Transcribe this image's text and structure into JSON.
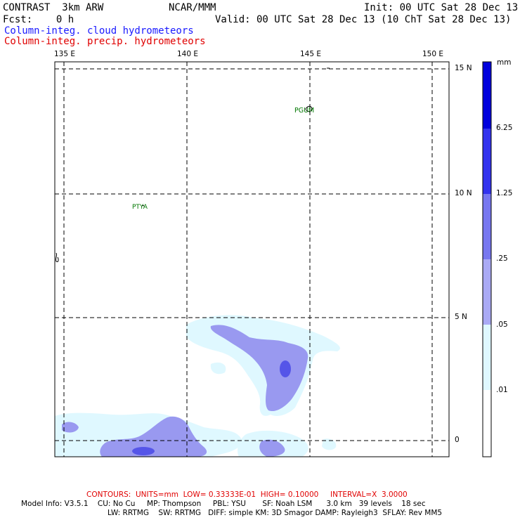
{
  "header": {
    "model": "CONTRAST  3km ARW",
    "org": "NCAR/MMM",
    "init": "Init: 00 UTC Sat 28 Dec 13",
    "fcst": "Fcst:    0 h",
    "valid": "Valid: 00 UTC Sat 28 Dec 13 (10 ChT Sat 28 Dec 13)",
    "field1": "Column-integ. cloud hydrometeors",
    "field2": "Column-integ. precip. hydrometeors"
  },
  "map": {
    "lon_labels": [
      "135 E",
      "140 E",
      "145 E",
      "150 E"
    ],
    "lat_labels": [
      "15 N",
      "10 N",
      "5 N",
      "0"
    ],
    "stations": [
      {
        "id": "PGUM",
        "lon": 144.8,
        "lat": 13.5
      },
      {
        "id": "PTYA",
        "lon": 138.1,
        "lat": 9.5
      }
    ],
    "colors": {
      "grid": "#000000",
      "station": "#007700",
      "shade_01": "#d8f8ff",
      "shade_05": "#9999f0"
    }
  },
  "colorbar": {
    "unit": "mm",
    "levels": [
      "6.25",
      "1.25",
      ".25",
      ".05",
      ".01"
    ],
    "colors": [
      "#0000dd",
      "#3333ee",
      "#7777f0",
      "#aaaaf5",
      "#dff8ff",
      "#ffffff"
    ]
  },
  "footer": {
    "contours": "CONTOURS:  UNITS=mm  LOW= 0.33333E-01  HIGH= 0.10000     INTERVAL=X  3.0000",
    "line1": "Model Info: V3.5.1    CU: No Cu     MP: Thompson     PBL: YSU       SF: Noah LSM      3.0 km   39 levels    18 sec",
    "line2": "LW: RRTMG    SW: RRTMG   DIFF: simple KM: 3D Smagor DAMP: Rayleigh3  SFLAY: Rev MM5"
  }
}
